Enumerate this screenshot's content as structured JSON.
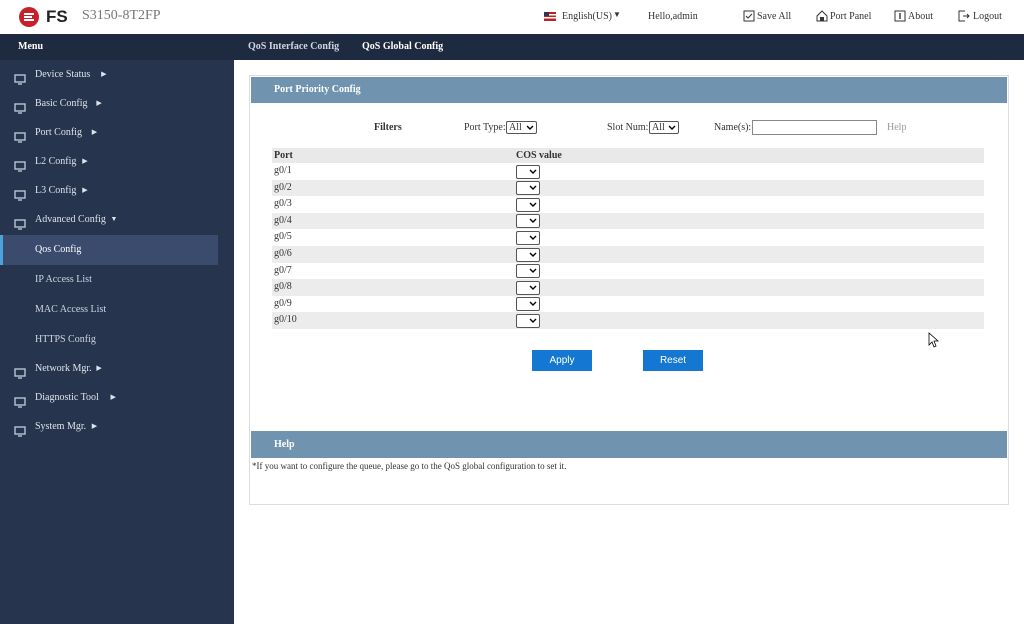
{
  "header": {
    "brand": "FS",
    "model": "S3150-8T2FP",
    "language": "English(US)",
    "greeting": "Hello,admin",
    "actions": [
      "Save All",
      "Port Panel",
      "About",
      "Logout"
    ]
  },
  "topnav": {
    "menu": "Menu",
    "tabs": [
      "QoS Interface Config",
      "QoS Global Config"
    ]
  },
  "sidebar": {
    "items": [
      {
        "label": "Device Status"
      },
      {
        "label": "Basic Config"
      },
      {
        "label": "Port Config"
      },
      {
        "label": "L2 Config"
      },
      {
        "label": "L3 Config"
      },
      {
        "label": "Advanced Config",
        "children": [
          "Qos Config",
          "IP Access List",
          "MAC Access List",
          "HTTPS Config"
        ]
      },
      {
        "label": "Network Mgr."
      },
      {
        "label": "Diagnostic Tool"
      },
      {
        "label": "System Mgr."
      }
    ]
  },
  "panel": {
    "title": "Port Priority Config",
    "filters": {
      "label": "Filters",
      "port_type": "Port Type:",
      "port_type_value": "All",
      "slot_num": "Slot Num:",
      "slot_value": "All",
      "names": "Name(s):",
      "help": "Help"
    },
    "table": {
      "columns": [
        "Port",
        "COS value"
      ],
      "rows": [
        "g0/1",
        "g0/2",
        "g0/3",
        "g0/4",
        "g0/5",
        "g0/6",
        "g0/7",
        "g0/8",
        "g0/9",
        "g0/10"
      ]
    },
    "buttons": [
      "Apply",
      "Reset"
    ]
  },
  "help": {
    "title": "Help",
    "text": "*If you want to configure the queue, please go to the QoS global configuration to set it."
  }
}
